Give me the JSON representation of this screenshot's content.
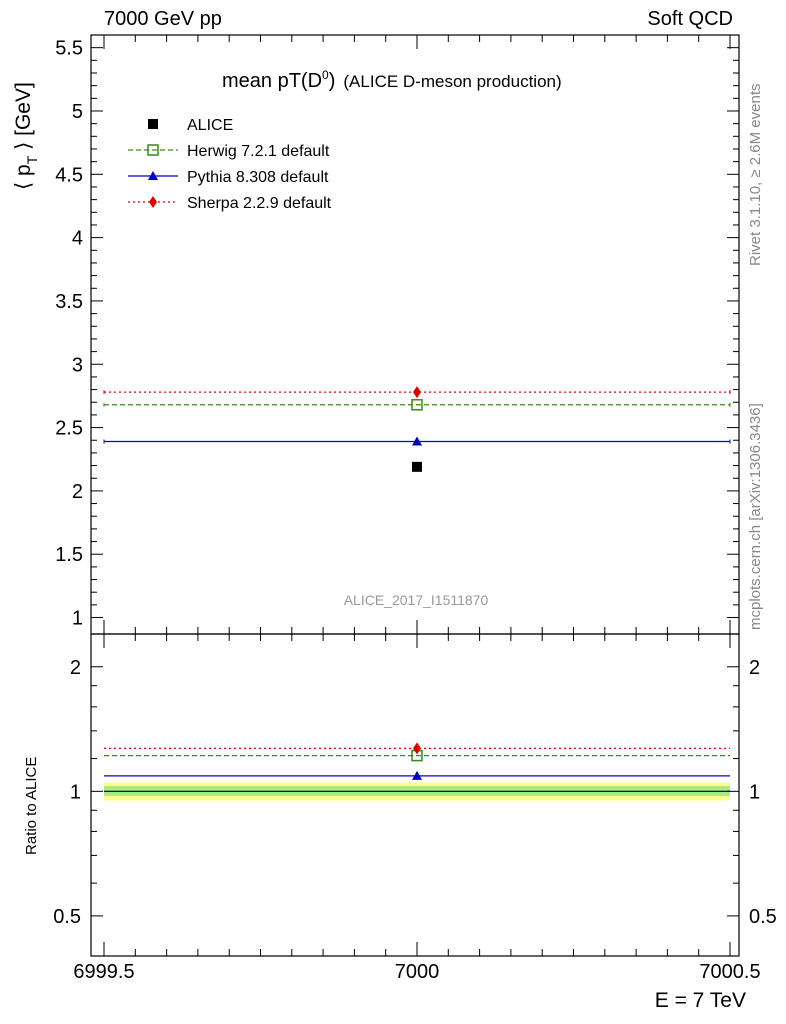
{
  "header": {
    "left": "7000 GeV pp",
    "right": "Soft QCD"
  },
  "side_labels": {
    "rivet": "Rivet 3.1.10, ≥ 2.6M events",
    "mcplots": "mcplots.cern.ch [arXiv:1306.3436]"
  },
  "chart_data": [
    {
      "type": "scatter",
      "panel": "main",
      "title_main": "mean pT(D",
      "title_sup": "0",
      "title_close": ")",
      "title_sub": "(ALICE D-meson production)",
      "ylabel": "⟨ p_T ⟩ [GeV]",
      "watermark": "ALICE_2017_I1511870",
      "xlim": [
        6999.5,
        7000.5
      ],
      "ylim": [
        0.87,
        5.6
      ],
      "yticks": [
        {
          "v": 1,
          "label": "1"
        },
        {
          "v": 1.5,
          "label": "1.5"
        },
        {
          "v": 2,
          "label": "2"
        },
        {
          "v": 2.5,
          "label": "2.5"
        },
        {
          "v": 3,
          "label": "3"
        },
        {
          "v": 3.5,
          "label": "3.5"
        },
        {
          "v": 4,
          "label": "4"
        },
        {
          "v": 4.5,
          "label": "4.5"
        },
        {
          "v": 5,
          "label": "5"
        },
        {
          "v": 5.5,
          "label": "5.5"
        }
      ],
      "legend_position": "top-left",
      "series": [
        {
          "name": "ALICE",
          "x": [
            7000
          ],
          "y": [
            2.19
          ],
          "color": "#000000",
          "marker": "square-filled",
          "line": "none"
        },
        {
          "name": "Herwig 7.2.1 default",
          "x": [
            7000
          ],
          "y": [
            2.68
          ],
          "color": "#3a8a1a",
          "marker": "square-open",
          "line": "dashed"
        },
        {
          "name": "Pythia 8.308 default",
          "x": [
            7000
          ],
          "y": [
            2.39
          ],
          "color": "#0000cc",
          "marker": "triangle",
          "line": "solid"
        },
        {
          "name": "Sherpa 2.2.9 default",
          "x": [
            7000
          ],
          "y": [
            2.78
          ],
          "color": "#e00000",
          "marker": "diamond",
          "line": "dotted"
        }
      ]
    },
    {
      "type": "scatter",
      "panel": "ratio",
      "ylabel": "Ratio to ALICE",
      "xlabel": "E = 7 TeV",
      "xlim": [
        6999.5,
        7000.5
      ],
      "xticks": [
        {
          "v": 6999.5,
          "label": "6999.5"
        },
        {
          "v": 7000,
          "label": "7000"
        },
        {
          "v": 7000.5,
          "label": "7000.5"
        }
      ],
      "ylim": [
        0.4,
        2.4
      ],
      "log_y": true,
      "yticks": [
        {
          "v": 0.5,
          "label": "0.5"
        },
        {
          "v": 1,
          "label": "1"
        },
        {
          "v": 2,
          "label": "2"
        }
      ],
      "bands": [
        {
          "lo": 0.95,
          "hi": 1.05,
          "color": "#ffff8c"
        },
        {
          "lo": 0.975,
          "hi": 1.03,
          "color": "#a6ea84"
        }
      ],
      "series": [
        {
          "name": "Herwig 7.2.1 default",
          "x": [
            7000
          ],
          "y": [
            1.22
          ],
          "color": "#3a8a1a",
          "marker": "square-open",
          "line": "dashed"
        },
        {
          "name": "Pythia 8.308 default",
          "x": [
            7000
          ],
          "y": [
            1.09
          ],
          "color": "#0000cc",
          "marker": "triangle",
          "line": "solid"
        },
        {
          "name": "Sherpa 2.2.9 default",
          "x": [
            7000
          ],
          "y": [
            1.27
          ],
          "color": "#e00000",
          "marker": "diamond",
          "line": "dotted"
        }
      ]
    }
  ]
}
